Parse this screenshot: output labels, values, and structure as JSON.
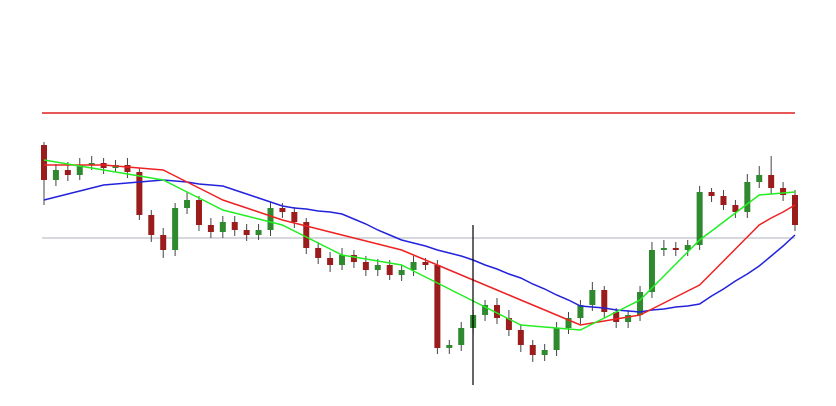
{
  "chart_data": {
    "type": "candlestick",
    "ylim": [
      0,
      406
    ],
    "open": [
      261,
      226,
      236,
      231,
      241,
      243,
      238,
      241,
      234,
      191,
      171,
      156,
      198,
      206,
      181,
      174,
      184,
      176,
      171,
      176,
      198,
      194,
      184,
      158,
      148,
      141,
      151,
      144,
      136,
      141,
      131,
      136,
      144,
      141,
      58,
      61,
      78,
      91,
      101,
      88,
      76,
      61,
      51,
      56,
      78,
      88,
      101,
      116,
      94,
      84,
      91,
      114,
      156,
      158,
      156,
      161,
      214,
      210,
      201,
      194,
      224,
      231,
      218,
      211
    ],
    "high": [
      264,
      242,
      244,
      248,
      250,
      248,
      246,
      248,
      238,
      196,
      178,
      203,
      214,
      210,
      188,
      190,
      190,
      182,
      182,
      204,
      203,
      199,
      188,
      164,
      154,
      158,
      156,
      150,
      147,
      146,
      141,
      150,
      148,
      146,
      66,
      84,
      96,
      106,
      108,
      96,
      82,
      66,
      62,
      84,
      94,
      106,
      124,
      120,
      98,
      96,
      120,
      164,
      166,
      164,
      166,
      220,
      218,
      216,
      206,
      232,
      240,
      250,
      224,
      216
    ],
    "low": [
      201,
      220,
      225,
      226,
      236,
      232,
      234,
      228,
      186,
      164,
      148,
      150,
      192,
      175,
      168,
      168,
      170,
      165,
      166,
      170,
      188,
      178,
      152,
      142,
      134,
      136,
      138,
      130,
      130,
      126,
      125,
      130,
      136,
      52,
      52,
      55,
      72,
      85,
      82,
      70,
      54,
      44,
      45,
      50,
      72,
      82,
      95,
      88,
      78,
      78,
      85,
      108,
      150,
      150,
      150,
      156,
      204,
      196,
      188,
      188,
      218,
      212,
      205,
      175
    ],
    "close": [
      226,
      236,
      231,
      241,
      243,
      238,
      241,
      234,
      191,
      171,
      156,
      198,
      206,
      181,
      174,
      184,
      176,
      171,
      176,
      198,
      194,
      184,
      158,
      148,
      141,
      151,
      144,
      136,
      141,
      131,
      136,
      144,
      141,
      58,
      61,
      78,
      91,
      101,
      88,
      76,
      61,
      51,
      56,
      78,
      88,
      101,
      116,
      94,
      84,
      91,
      114,
      156,
      158,
      156,
      161,
      214,
      210,
      201,
      194,
      224,
      231,
      218,
      211,
      181
    ],
    "up_color": "#2f8a2f",
    "down_color": "#9b1c1c",
    "lines": [
      {
        "color": "#2222dd",
        "values": [
          206,
          209,
          212,
          215,
          218,
          221,
          222,
          223,
          224,
          225,
          226,
          225,
          224,
          222,
          221,
          220,
          216,
          212,
          208,
          204,
          200,
          198,
          197,
          195,
          194,
          192,
          187,
          182,
          176,
          171,
          166,
          163,
          160,
          156,
          153,
          150,
          146,
          141,
          137,
          132,
          128,
          122,
          117,
          111,
          106,
          100,
          99,
          98,
          96,
          95,
          94,
          96,
          97,
          99,
          100,
          102,
          110,
          117,
          125,
          132,
          140,
          150,
          160,
          171
        ]
      },
      {
        "color": "#ee2222",
        "values": [
          241,
          241,
          241,
          241,
          241,
          241,
          240,
          239,
          238,
          237,
          236,
          230,
          224,
          218,
          212,
          206,
          202,
          198,
          194,
          190,
          186,
          183,
          180,
          177,
          174,
          171,
          168,
          165,
          162,
          159,
          156,
          151,
          146,
          141,
          136,
          131,
          126,
          121,
          116,
          111,
          106,
          101,
          96,
          91,
          86,
          81,
          83,
          85,
          87,
          89,
          91,
          97,
          103,
          109,
          115,
          121,
          133,
          145,
          157,
          169,
          181,
          188,
          194,
          201
        ]
      },
      {
        "color": "#22ee22",
        "values": [
          246,
          244,
          242,
          240,
          238,
          236,
          234,
          232,
          230,
          228,
          226,
          220,
          214,
          208,
          202,
          196,
          193,
          190,
          187,
          184,
          181,
          175,
          169,
          163,
          157,
          151,
          149,
          147,
          145,
          143,
          141,
          135,
          129,
          123,
          117,
          111,
          105,
          99,
          93,
          87,
          81,
          80,
          79,
          78,
          77,
          76,
          82,
          88,
          94,
          100,
          106,
          118,
          130,
          142,
          154,
          166,
          175,
          184,
          193,
          202,
          211,
          212,
          213,
          214
        ]
      }
    ],
    "hlines": [
      {
        "value": 293,
        "color": "#e02020"
      },
      {
        "value": 168,
        "color": "#c8ccd4"
      }
    ]
  }
}
